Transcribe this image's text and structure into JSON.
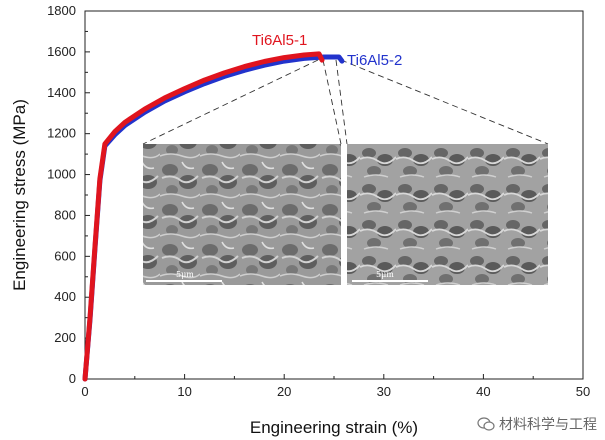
{
  "chart_data": {
    "type": "line",
    "xlabel": "Engineering strain (%)",
    "ylabel": "Engineering stress (MPa)",
    "xlim": [
      0,
      50
    ],
    "ylim": [
      0,
      1800
    ],
    "xticks": [
      0,
      10,
      20,
      30,
      40,
      50
    ],
    "yticks": [
      0,
      200,
      400,
      600,
      800,
      1000,
      1200,
      1400,
      1600,
      1800
    ],
    "grid": false,
    "series": [
      {
        "name": "Ti6Al5-1",
        "color": "#e0141e",
        "x": [
          0,
          0.5,
          1.0,
          1.5,
          2.0,
          3,
          4,
          6,
          8,
          10,
          12,
          14,
          16,
          18,
          20,
          22,
          23.5,
          23.8
        ],
        "y": [
          0,
          300,
          650,
          980,
          1150,
          1210,
          1255,
          1320,
          1375,
          1420,
          1462,
          1497,
          1528,
          1553,
          1572,
          1585,
          1590,
          1560
        ]
      },
      {
        "name": "Ti6Al5-2",
        "color": "#2233cc",
        "x": [
          0,
          0.5,
          1.0,
          1.5,
          2.0,
          3,
          4,
          6,
          8,
          10,
          12,
          14,
          16,
          18,
          20,
          22,
          24,
          25.5,
          25.8
        ],
        "y": [
          0,
          290,
          640,
          970,
          1140,
          1195,
          1240,
          1305,
          1360,
          1405,
          1445,
          1480,
          1510,
          1535,
          1555,
          1568,
          1575,
          1575,
          1555
        ]
      }
    ],
    "insets": [
      {
        "scale_label": "5μm"
      },
      {
        "scale_label": "5μm"
      }
    ]
  },
  "watermark": {
    "text": "材料科学与工程"
  }
}
